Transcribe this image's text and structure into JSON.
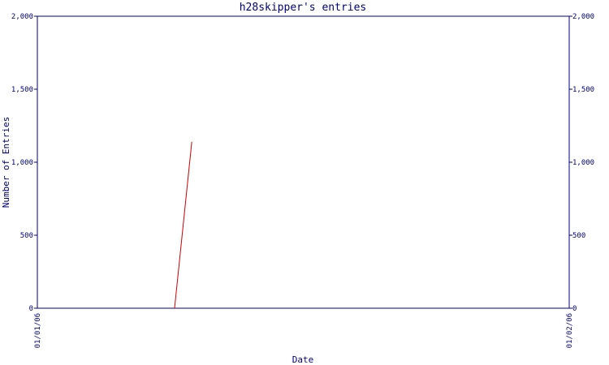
{
  "chart_data": {
    "type": "line",
    "title": "h28skipper's entries",
    "xlabel": "Date",
    "ylabel": "Number of Entries",
    "x_tick_labels": [
      "01/01/06",
      "01/02/06"
    ],
    "y_tick_labels": [
      "0",
      "500",
      "1,000",
      "1,500",
      "2,000"
    ],
    "y_ticks": [
      0,
      500,
      1000,
      1500,
      2000
    ],
    "ylim": [
      0,
      2000
    ],
    "xlim": [
      "2006-01-01",
      "2006-02-01"
    ],
    "series": [
      {
        "color": "#cc0000",
        "x": [
          "2006-01-09",
          "2006-01-10"
        ],
        "values": [
          0,
          1140
        ]
      }
    ],
    "grid": false,
    "axis_color": "#000080"
  }
}
